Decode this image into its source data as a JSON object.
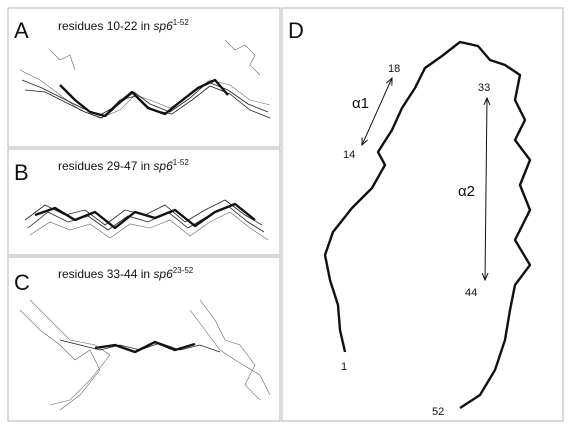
{
  "panels": [
    {
      "letter": "A",
      "caption": {
        "text": "residues 10-22 in ",
        "species": "sp6",
        "superscript": "1-52"
      }
    },
    {
      "letter": "B",
      "caption": {
        "text": "residues 29-47 in ",
        "species": "sp6",
        "superscript": "1-52"
      }
    },
    {
      "letter": "C",
      "caption": {
        "text": "residues 33-44 in ",
        "species": "sp6",
        "superscript": "23-52"
      }
    }
  ],
  "panel_d": {
    "letter": "D",
    "helices": [
      "α1",
      "α2"
    ],
    "residue_labels": [
      "18",
      "33",
      "14",
      "44",
      "1",
      "52"
    ]
  }
}
